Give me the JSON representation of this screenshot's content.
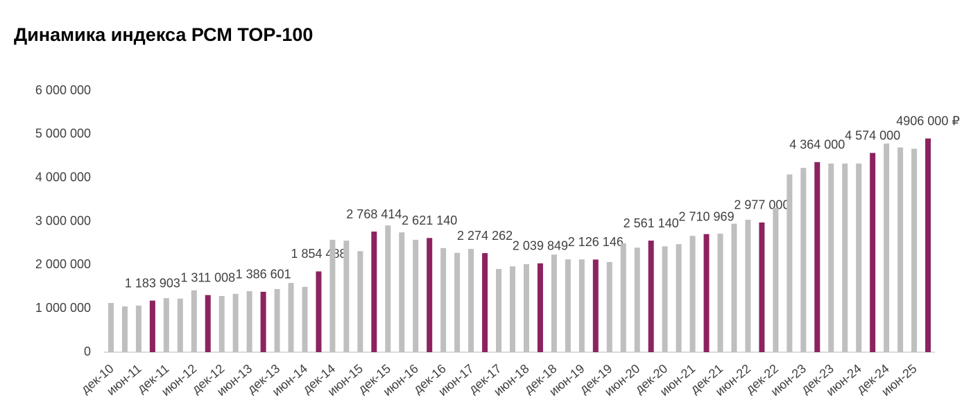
{
  "chart_data": {
    "type": "bar",
    "title": "Динамика индекса РСМ TOP-100",
    "categories": [
      "дек-10",
      null,
      "июн-11",
      null,
      "дек-11",
      null,
      "июн-12",
      null,
      "дек-12",
      null,
      "июн-13",
      null,
      "дек-13",
      null,
      "июн-14",
      null,
      "дек-14",
      null,
      "июн-15",
      null,
      "дек-15",
      null,
      "июн-16",
      null,
      "дек-16",
      null,
      "июн-17",
      null,
      "дек-17",
      null,
      "июн-18",
      null,
      "дек-18",
      null,
      "июн-19",
      null,
      "дек-19",
      null,
      "июн-20",
      null,
      "дек-20",
      null,
      "июн-21",
      null,
      "дек-21",
      null,
      "июн-22",
      null,
      "дек-22",
      null,
      "июн-23",
      null,
      "дек-23",
      null,
      "июн-24",
      null,
      "дек-24",
      null,
      "июн-25",
      null
    ],
    "values": [
      1130000,
      1050000,
      1070000,
      1183903,
      1240000,
      1230000,
      1420000,
      1311008,
      1290000,
      1340000,
      1400000,
      1386601,
      1450000,
      1590000,
      1500000,
      1854488,
      2580000,
      2560000,
      2320000,
      2768414,
      2910000,
      2750000,
      2580000,
      2621140,
      2390000,
      2280000,
      2370000,
      2274262,
      1910000,
      1970000,
      2020000,
      2039849,
      2240000,
      2130000,
      2130000,
      2126146,
      2070000,
      2500000,
      2400000,
      2561140,
      2430000,
      2480000,
      2670000,
      2710969,
      2720000,
      2950000,
      3040000,
      2977000,
      3310000,
      4080000,
      4230000,
      4364000,
      4330000,
      4330000,
      4330000,
      4574000,
      4790000,
      4700000,
      4670000,
      4906000
    ],
    "value_labels": [
      null,
      null,
      null,
      "1 183 903",
      null,
      null,
      null,
      "1 311 008",
      null,
      null,
      null,
      "1 386 601",
      null,
      null,
      null,
      "1 854 488",
      null,
      null,
      null,
      "2 768 414",
      null,
      null,
      null,
      "2 621 140",
      null,
      null,
      null,
      "2 274 262",
      null,
      null,
      null,
      "2 039 849",
      null,
      null,
      null,
      "2 126 146",
      null,
      null,
      null,
      "2 561 140",
      null,
      null,
      null,
      "2 710 969",
      null,
      null,
      null,
      "2 977 000",
      null,
      null,
      null,
      "4 364 000",
      null,
      null,
      null,
      "4 574 000",
      null,
      null,
      null,
      "4906 000 ₽"
    ],
    "color": "#bfbfbf",
    "highlight_color": "#8c2360",
    "ylim": [
      0,
      6000000
    ],
    "yticks": [
      0,
      {
        "value": 1000000,
        "label": "1 000 000"
      },
      {
        "value": 2000000,
        "label": "2 000 000"
      },
      {
        "value": 3000000,
        "label": "3 000 000"
      },
      {
        "value": 4000000,
        "label": "4 000 000"
      },
      {
        "value": 5000000,
        "label": "5 000 000"
      },
      {
        "value": 6000000,
        "label": "6 000 000"
      }
    ],
    "grid": false
  }
}
